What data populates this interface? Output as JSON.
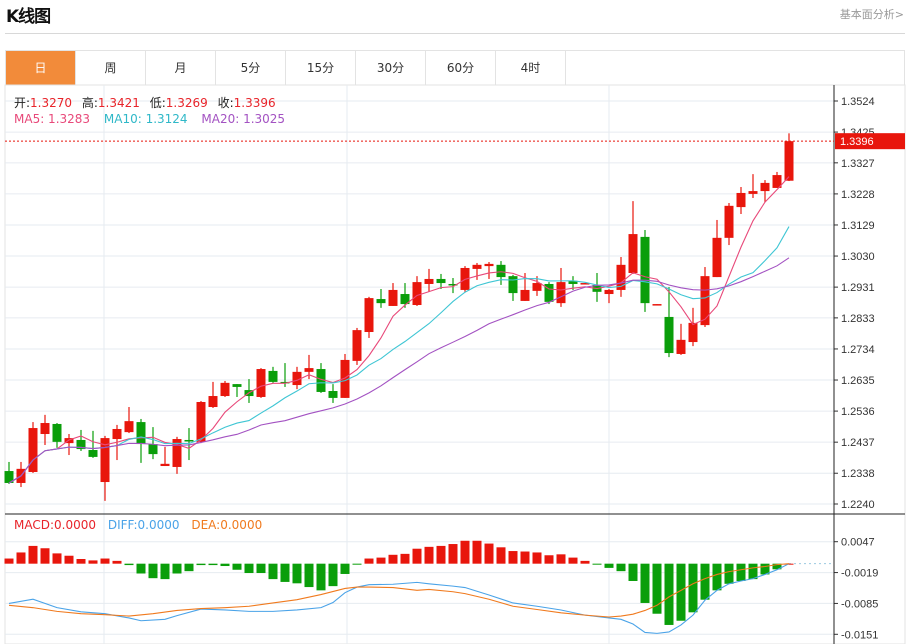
{
  "header": {
    "title": "K线图",
    "link": "基本面分析>"
  },
  "tabs": [
    {
      "label": "日",
      "active": true
    },
    {
      "label": "周"
    },
    {
      "label": "月"
    },
    {
      "label": "5分"
    },
    {
      "label": "15分"
    },
    {
      "label": "30分"
    },
    {
      "label": "60分"
    },
    {
      "label": "4时"
    }
  ],
  "ohlc_legend": {
    "open_label": "开:",
    "open": "1.3270",
    "high_label": "高:",
    "high": "1.3421",
    "low_label": "低:",
    "low": "1.3269",
    "close_label": "收:",
    "close": "1.3396"
  },
  "ma_legend": {
    "ma5": "MA5: 1.3283",
    "ma10": "MA10: 1.3124",
    "ma20": "MA20: 1.3025"
  },
  "macd_legend": {
    "macd": "MACD:0.0000",
    "diff": "DIFF:0.0000",
    "dea": "DEA:0.0000"
  },
  "colors": {
    "up": "#e8160c",
    "down": "#0a9e0a",
    "ma5": "#e8497a",
    "ma10": "#3fc6d4",
    "ma20": "#a352c2",
    "diff": "#4aa3e8",
    "dea": "#f07a1e",
    "accent": "#f28b3a"
  },
  "chart_data": [
    {
      "type": "candlestick",
      "ylim": [
        1.224,
        1.3524
      ],
      "yticks": [
        "1.3524",
        "1.3425",
        "1.3327",
        "1.3228",
        "1.3129",
        "1.3030",
        "1.2931",
        "1.2833",
        "1.2734",
        "1.2635",
        "1.2536",
        "1.2437",
        "1.2338",
        "1.2240"
      ],
      "last_price": "1.3396",
      "grid": true,
      "ma_periods": [
        5,
        10,
        20
      ],
      "ohlc": [
        [
          1.2345,
          1.2374,
          1.2304,
          1.2307
        ],
        [
          1.2307,
          1.2374,
          1.2294,
          1.2352
        ],
        [
          1.2342,
          1.2501,
          1.2339,
          1.2482
        ],
        [
          1.2463,
          1.2524,
          1.2428,
          1.2498
        ],
        [
          1.2495,
          1.2498,
          1.2419,
          1.2438
        ],
        [
          1.2434,
          1.2463,
          1.2396,
          1.245
        ],
        [
          1.2444,
          1.2476,
          1.2409,
          1.2415
        ],
        [
          1.2412,
          1.2473,
          1.2387,
          1.239
        ],
        [
          1.231,
          1.2457,
          1.225,
          1.245
        ],
        [
          1.2447,
          1.2492,
          1.238,
          1.2479
        ],
        [
          1.2469,
          1.2549,
          1.2466,
          1.2504
        ],
        [
          1.2501,
          1.2511,
          1.2371,
          1.2431
        ],
        [
          1.2431,
          1.2485,
          1.2383,
          1.2399
        ],
        [
          1.2361,
          1.2422,
          1.2361,
          1.2368
        ],
        [
          1.2358,
          1.2454,
          1.2336,
          1.2447
        ],
        [
          1.2444,
          1.2482,
          1.238,
          1.2441
        ],
        [
          1.2438,
          1.2568,
          1.2434,
          1.2565
        ],
        [
          1.2549,
          1.2629,
          1.2546,
          1.2584
        ],
        [
          1.2584,
          1.2632,
          1.2581,
          1.2626
        ],
        [
          1.2622,
          1.2622,
          1.2581,
          1.2613
        ],
        [
          1.2603,
          1.2638,
          1.2562,
          1.2584
        ],
        [
          1.2581,
          1.2673,
          1.2578,
          1.267
        ],
        [
          1.2664,
          1.2677,
          1.2626,
          1.2629
        ],
        [
          1.2629,
          1.2689,
          1.2613,
          1.2626
        ],
        [
          1.2619,
          1.2677,
          1.2606,
          1.2661
        ],
        [
          1.2661,
          1.2715,
          1.2638,
          1.2673
        ],
        [
          1.267,
          1.2689,
          1.2594,
          1.2597
        ],
        [
          1.26,
          1.2622,
          1.2562,
          1.2578
        ],
        [
          1.2578,
          1.2718,
          1.2578,
          1.2699
        ],
        [
          1.2696,
          1.2801,
          1.2683,
          1.2794
        ],
        [
          1.2788,
          1.29,
          1.2769,
          1.2896
        ],
        [
          1.2893,
          1.2925,
          1.2865,
          1.288
        ],
        [
          1.2871,
          1.2944,
          1.2871,
          1.2922
        ],
        [
          1.2909,
          1.2944,
          1.2865,
          1.2877
        ],
        [
          1.2874,
          1.2966,
          1.2871,
          1.2947
        ],
        [
          1.2941,
          1.2989,
          1.2916,
          1.2957
        ],
        [
          1.2957,
          1.2973,
          1.2925,
          1.2944
        ],
        [
          1.2941,
          1.296,
          1.2912,
          1.2938
        ],
        [
          1.2922,
          1.2998,
          1.2916,
          1.2992
        ],
        [
          1.2989,
          1.3008,
          1.2954,
          1.3002
        ],
        [
          1.2998,
          1.3011,
          1.2957,
          1.3005
        ],
        [
          1.3002,
          1.3014,
          1.2938,
          1.2963
        ],
        [
          1.2966,
          1.297,
          1.2887,
          1.2912
        ],
        [
          1.2887,
          1.2976,
          1.2887,
          1.2922
        ],
        [
          1.2919,
          1.2966,
          1.2903,
          1.2944
        ],
        [
          1.2941,
          1.2947,
          1.2877,
          1.2884
        ],
        [
          1.288,
          1.2992,
          1.2868,
          1.2947
        ],
        [
          1.2951,
          1.2966,
          1.2922,
          1.2941
        ],
        [
          1.2942,
          1.2944,
          1.2941,
          1.2944
        ],
        [
          1.2938,
          1.2976,
          1.2884,
          1.2916
        ],
        [
          1.2909,
          1.2925,
          1.288,
          1.2922
        ],
        [
          1.2922,
          1.3027,
          1.29,
          1.3002
        ],
        [
          1.2976,
          1.3205,
          1.2973,
          1.31
        ],
        [
          1.3091,
          1.3113,
          1.2852,
          1.288
        ],
        [
          1.2876,
          1.2877,
          1.2876,
          1.2877
        ],
        [
          1.2836,
          1.2931,
          1.2708,
          1.2721
        ],
        [
          1.2718,
          1.2814,
          1.2715,
          1.2763
        ],
        [
          1.2756,
          1.2865,
          1.2743,
          1.2817
        ],
        [
          1.281,
          1.2995,
          1.2804,
          1.2966
        ],
        [
          1.2963,
          1.3145,
          1.2963,
          1.3088
        ],
        [
          1.3088,
          1.3199,
          1.3065,
          1.319
        ],
        [
          1.3186,
          1.325,
          1.3164,
          1.3231
        ],
        [
          1.3228,
          1.3291,
          1.3215,
          1.3237
        ],
        [
          1.3237,
          1.3272,
          1.3202,
          1.3263
        ],
        [
          1.3247,
          1.3298,
          1.3247,
          1.3288
        ],
        [
          1.327,
          1.3421,
          1.3269,
          1.3396
        ]
      ]
    },
    {
      "type": "macd",
      "yticks": [
        "0.0047",
        "-0.0019",
        "-0.0085",
        "-0.0151"
      ],
      "ylim": [
        -0.0151,
        0.0047
      ],
      "histogram": [
        0.0011,
        0.0024,
        0.0038,
        0.0033,
        0.0022,
        0.0017,
        0.001,
        0.0007,
        0.0011,
        0.0006,
        -0.0003,
        -0.0021,
        -0.0031,
        -0.0033,
        -0.0021,
        -0.0016,
        -0.0003,
        -0.0003,
        -0.0005,
        -0.0013,
        -0.002,
        -0.002,
        -0.0033,
        -0.0039,
        -0.0042,
        -0.005,
        -0.0057,
        -0.0048,
        -0.0022,
        -0.0002,
        0.0011,
        0.0013,
        0.0019,
        0.0021,
        0.0032,
        0.0036,
        0.0038,
        0.0042,
        0.0049,
        0.0049,
        0.0043,
        0.0035,
        0.0027,
        0.0026,
        0.0024,
        0.0018,
        0.002,
        0.0013,
        0.0006,
        -0.0002,
        -0.0009,
        -0.0016,
        -0.0037,
        -0.0084,
        -0.0107,
        -0.0131,
        -0.0122,
        -0.0104,
        -0.0077,
        -0.0057,
        -0.0043,
        -0.0037,
        -0.0033,
        -0.0023,
        -0.0012,
        0.0
      ],
      "diff": [
        [
          0,
          -0.0085
        ],
        [
          2,
          -0.0076
        ],
        [
          4,
          -0.0094
        ],
        [
          6,
          -0.0103
        ],
        [
          8,
          -0.0107
        ],
        [
          10,
          -0.0116
        ],
        [
          11,
          -0.0122
        ],
        [
          13,
          -0.0119
        ],
        [
          14,
          -0.0111
        ],
        [
          16,
          -0.0097
        ],
        [
          18,
          -0.0099
        ],
        [
          20,
          -0.0102
        ],
        [
          22,
          -0.0102
        ],
        [
          24,
          -0.0099
        ],
        [
          26,
          -0.0094
        ],
        [
          27,
          -0.0083
        ],
        [
          28,
          -0.0062
        ],
        [
          29,
          -0.005
        ],
        [
          30,
          -0.0045
        ],
        [
          32,
          -0.0044
        ],
        [
          34,
          -0.004
        ],
        [
          35,
          -0.0043
        ],
        [
          37,
          -0.0048
        ],
        [
          38,
          -0.0051
        ],
        [
          40,
          -0.0067
        ],
        [
          42,
          -0.0084
        ],
        [
          44,
          -0.0091
        ],
        [
          46,
          -0.0099
        ],
        [
          48,
          -0.011
        ],
        [
          50,
          -0.0116
        ],
        [
          51,
          -0.0119
        ],
        [
          52,
          -0.0129
        ],
        [
          53,
          -0.0147
        ],
        [
          54,
          -0.0149
        ],
        [
          55,
          -0.0146
        ],
        [
          56,
          -0.0131
        ],
        [
          57,
          -0.011
        ],
        [
          58,
          -0.0078
        ],
        [
          59,
          -0.0057
        ],
        [
          60,
          -0.0043
        ],
        [
          61,
          -0.0037
        ],
        [
          62,
          -0.0032
        ],
        [
          63,
          -0.0023
        ],
        [
          64,
          -0.0013
        ],
        [
          65,
          0.0
        ]
      ],
      "dea": [
        [
          0,
          -0.0089
        ],
        [
          2,
          -0.0094
        ],
        [
          4,
          -0.0102
        ],
        [
          6,
          -0.0107
        ],
        [
          8,
          -0.0109
        ],
        [
          10,
          -0.0112
        ],
        [
          12,
          -0.0107
        ],
        [
          14,
          -0.01
        ],
        [
          16,
          -0.0096
        ],
        [
          18,
          -0.0094
        ],
        [
          20,
          -0.0091
        ],
        [
          22,
          -0.0084
        ],
        [
          24,
          -0.0077
        ],
        [
          26,
          -0.0066
        ],
        [
          28,
          -0.0053
        ],
        [
          29,
          -0.005
        ],
        [
          30,
          -0.005
        ],
        [
          32,
          -0.0051
        ],
        [
          34,
          -0.0057
        ],
        [
          35,
          -0.0055
        ],
        [
          37,
          -0.006
        ],
        [
          38,
          -0.0064
        ],
        [
          40,
          -0.0076
        ],
        [
          42,
          -0.0091
        ],
        [
          44,
          -0.0098
        ],
        [
          46,
          -0.0105
        ],
        [
          48,
          -0.011
        ],
        [
          50,
          -0.0114
        ],
        [
          51,
          -0.0112
        ],
        [
          52,
          -0.0108
        ],
        [
          53,
          -0.01
        ],
        [
          54,
          -0.0089
        ],
        [
          55,
          -0.0071
        ],
        [
          56,
          -0.0057
        ],
        [
          57,
          -0.0043
        ],
        [
          58,
          -0.0032
        ],
        [
          59,
          -0.0023
        ],
        [
          60,
          -0.0017
        ],
        [
          61,
          -0.0013
        ],
        [
          62,
          -0.0009
        ],
        [
          63,
          -0.0006
        ],
        [
          64,
          -0.0002
        ],
        [
          65,
          0.0
        ]
      ]
    }
  ]
}
